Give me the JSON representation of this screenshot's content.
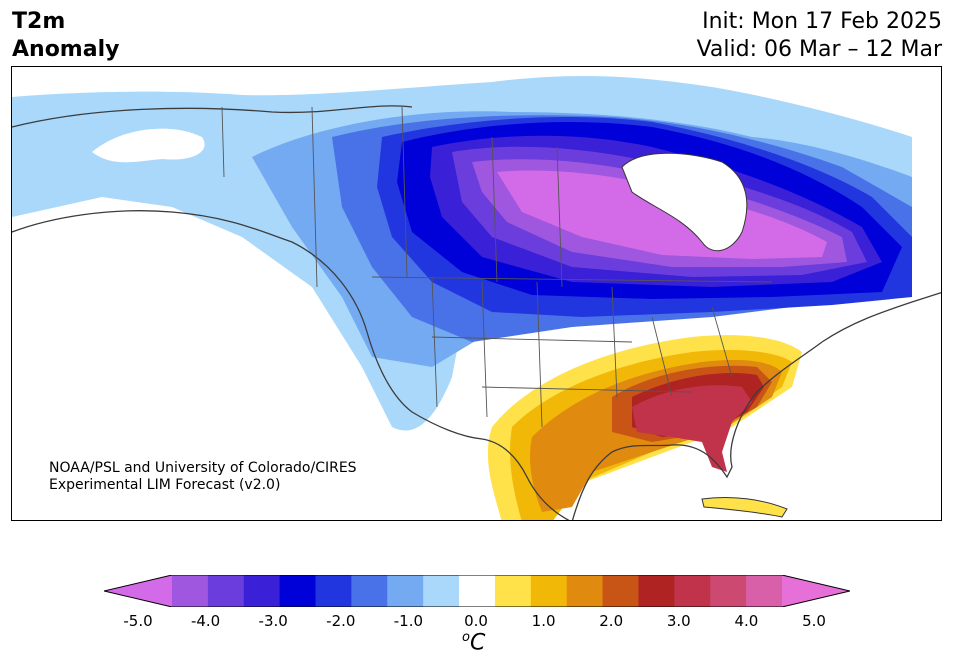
{
  "title": {
    "left_line1": "T2m",
    "left_line2": "Anomaly",
    "init": "Init: Mon 17 Feb 2025",
    "valid": "Valid: 06 Mar – 12 Mar"
  },
  "credit": {
    "line1": "NOAA/PSL and University of Colorado/CIRES",
    "line2": "Experimental LIM Forecast (v2.0)"
  },
  "colorbar": {
    "ticks": [
      "-5.0",
      "-4.0",
      "-3.0",
      "-2.0",
      "-1.0",
      "0.0",
      "1.0",
      "2.0",
      "3.0",
      "4.0",
      "5.0"
    ],
    "units_base": "C",
    "units_sup": "o",
    "colors": [
      "#d36be8",
      "#a057df",
      "#6b3ddc",
      "#3a20d6",
      "#0000d8",
      "#2236e0",
      "#4a72e8",
      "#74aaf2",
      "#aad8fa",
      "#ffffff",
      "#ffe14a",
      "#f2b807",
      "#e08a10",
      "#c85416",
      "#b02323",
      "#c0334a",
      "#cc4a72",
      "#d860a8",
      "#e670d8"
    ]
  }
}
